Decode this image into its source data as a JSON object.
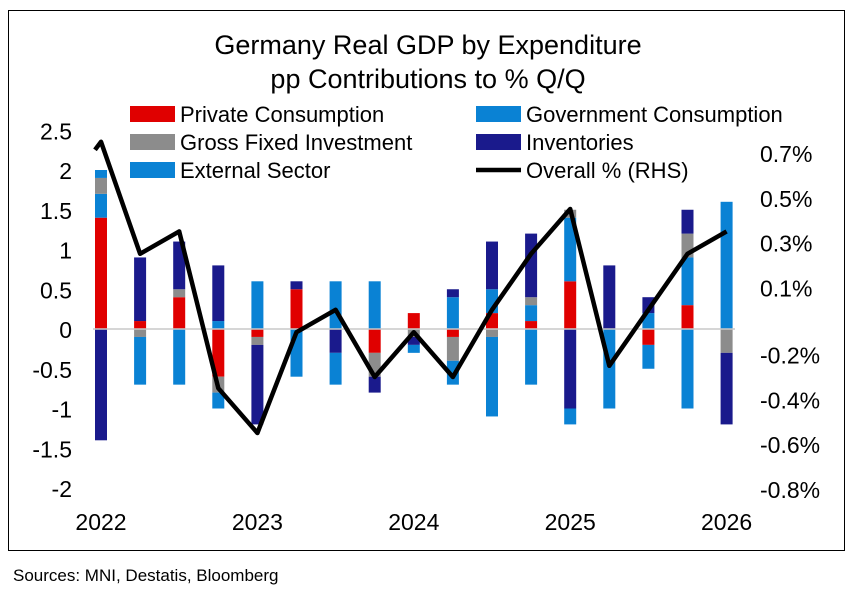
{
  "source": "Sources: MNI, Destatis, Bloomberg",
  "chart_data": {
    "type": "bar",
    "stacked": true,
    "title": "Germany Real GDP by Expenditure",
    "subtitle": "pp Contributions to % Q/Q",
    "categories": [
      "2022Q1",
      "2022Q2",
      "2022Q3",
      "2022Q4",
      "2023Q1",
      "2023Q2",
      "2023Q3",
      "2023Q4",
      "2024Q1",
      "2024Q2",
      "2024Q3",
      "2024Q4",
      "2025Q1",
      "2025Q2",
      "2025Q3",
      "2025Q4",
      "2026Q1"
    ],
    "x_tick_labels": [
      "2022",
      "2023",
      "2024",
      "2025",
      "2026"
    ],
    "y_left": {
      "ylim": [
        -2,
        2.5
      ],
      "ticks": [
        "2.5",
        "2",
        "1.5",
        "1",
        "0.5",
        "0",
        "-0.5",
        "-1",
        "-1.5",
        "-2"
      ],
      "tick_values": [
        2.5,
        2,
        1.5,
        1,
        0.5,
        0,
        -0.5,
        -1,
        -1.5,
        -2
      ]
    },
    "y_right": {
      "ylim": [
        -0.8,
        0.8
      ],
      "ticks": [
        "0.7%",
        "0.5%",
        "0.3%",
        "0.1%",
        "-0.2%",
        "-0.4%",
        "-0.6%",
        "-0.8%"
      ],
      "tick_values": [
        0.7,
        0.5,
        0.3,
        0.1,
        -0.2,
        -0.4,
        -0.6,
        -0.8
      ]
    },
    "legend_placement": "top",
    "grid": false,
    "series": [
      {
        "name": "Private Consumption",
        "color": "#e00000",
        "kind": "bar",
        "values": [
          1.4,
          0.1,
          0.4,
          -0.6,
          -0.1,
          0.5,
          0.0,
          -0.3,
          0.2,
          -0.1,
          0.2,
          0.1,
          0.6,
          0.0,
          -0.2,
          0.3,
          0.0
        ]
      },
      {
        "name": "Government Consumption",
        "color": "#0a82d4",
        "kind": "bar",
        "values": [
          0.3,
          0.0,
          0.0,
          0.1,
          0.6,
          0.0,
          0.6,
          0.6,
          0.0,
          0.4,
          0.3,
          0.2,
          0.8,
          0.0,
          0.2,
          0.6,
          1.6
        ]
      },
      {
        "name": "Gross Fixed Investment",
        "color": "#8c8c8c",
        "kind": "bar",
        "values": [
          0.2,
          -0.1,
          0.1,
          -0.2,
          -0.1,
          0.0,
          0.0,
          -0.3,
          -0.1,
          -0.3,
          -0.1,
          0.1,
          0.1,
          0.0,
          0.0,
          0.3,
          -0.3
        ]
      },
      {
        "name": "Inventories",
        "color": "#1a1a8c",
        "kind": "bar",
        "values": [
          -1.4,
          0.8,
          0.6,
          0.7,
          -1.0,
          0.1,
          -0.3,
          -0.2,
          -0.1,
          0.1,
          0.6,
          0.8,
          -1.0,
          0.8,
          0.2,
          0.3,
          -0.9
        ]
      },
      {
        "name": "External Sector",
        "color": "#0a82d4",
        "kind": "bar",
        "values": [
          0.1,
          -0.6,
          -0.7,
          -0.2,
          0.0,
          -0.6,
          -0.4,
          0.0,
          -0.1,
          -0.3,
          -1.0,
          -0.7,
          -0.2,
          -1.0,
          -0.3,
          -1.0,
          0.0
        ]
      },
      {
        "name": "Overall % (RHS)",
        "color": "#000000",
        "kind": "line",
        "axis": "right",
        "values": [
          0.75,
          0.25,
          0.35,
          -0.35,
          -0.55,
          -0.1,
          0.0,
          -0.3,
          -0.1,
          -0.3,
          0.0,
          0.25,
          0.45,
          -0.25,
          0.0,
          0.25,
          0.35
        ]
      }
    ]
  }
}
